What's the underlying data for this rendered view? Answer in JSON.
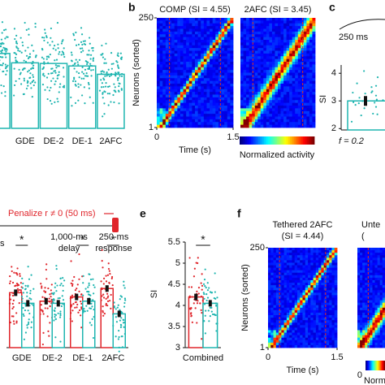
{
  "chart_data": [
    {
      "type": "bar",
      "categories": [
        null,
        "GDE",
        "DE-2",
        "DE-1",
        "2AFC"
      ],
      "values": [
        3.6,
        3.15,
        3.12,
        3.0,
        2.6
      ],
      "color": "#1fb5b0",
      "ylim": [
        0,
        5
      ]
    },
    {
      "type": "heatmap",
      "panel_label": "b",
      "titles": [
        [
          "COMP (SI = 4.55)"
        ],
        [
          "2AFC (SI = 3.45)"
        ]
      ],
      "ylabel": "Neurons (sorted)",
      "ylim": [
        1,
        250
      ],
      "yticks": [
        250,
        1
      ],
      "xlim": [
        0,
        1.5
      ],
      "xticks": [
        0,
        1.5
      ],
      "xlabel": "Time (s)",
      "colorbar_label": "Normalized activity"
    },
    {
      "type": "bar",
      "panel_label": "c",
      "annotation": "250 ms",
      "ylabel": "SI",
      "ylim": [
        1.95,
        4.3
      ],
      "yticks": [
        2,
        3,
        4
      ],
      "values": [
        3.0
      ],
      "color": "#1fb5b0",
      "xlabel": "f = 0.2"
    },
    {
      "type": "paired_bar",
      "annotation": "Penalize r ≠ 0 (50 ms)",
      "timeline_labels": [
        "s",
        "1,000-ms",
        "delay",
        "250-ms",
        "response"
      ],
      "categories": [
        "GDE",
        "DE-2",
        "DE-1",
        "2AFC"
      ],
      "ylim": [
        3,
        5.5
      ],
      "series": [
        {
          "color": "#e0252b",
          "values": [
            4.3,
            4.1,
            4.2,
            4.4
          ]
        },
        {
          "color": "#1fb5b0",
          "values": [
            4.05,
            4.05,
            4.1,
            3.8
          ]
        }
      ],
      "stars": [
        "*",
        null,
        "*",
        "*"
      ]
    },
    {
      "type": "paired_bar",
      "panel_label": "e",
      "ylabel": "SI",
      "ylim": [
        3,
        5.5
      ],
      "yticks": [
        5.5,
        5,
        4.5,
        4,
        3.5,
        3
      ],
      "categories": [
        "Combined"
      ],
      "series": [
        {
          "color": "#e0252b",
          "values": [
            4.2
          ]
        },
        {
          "color": "#1fb5b0",
          "values": [
            4.05
          ]
        }
      ],
      "stars": [
        "*"
      ]
    },
    {
      "type": "heatmap",
      "panel_label": "f",
      "titles": [
        [
          "Tethered 2AFC",
          "(SI = 4.44)"
        ],
        [
          "Unte",
          "("
        ]
      ],
      "ylabel": "Neurons (sorted)",
      "ylim": [
        1,
        250
      ],
      "yticks": [
        250,
        1
      ],
      "xlim": [
        0,
        1.5
      ],
      "xticks": [
        0,
        1.5
      ],
      "xlabel": "Time (s)",
      "colorbar_ticks": [
        0
      ],
      "colorbar_label": "Norm"
    }
  ]
}
